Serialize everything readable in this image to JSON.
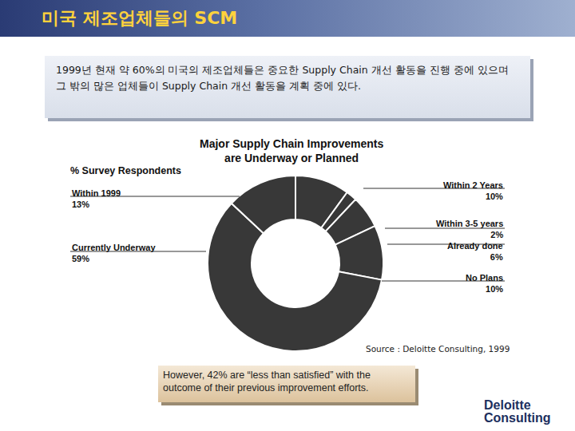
{
  "header": {
    "title": "미국 제조업체들의 SCM"
  },
  "summary": "1999년 현재 약 60%의 미국의 제조업체들은 중요한 Supply Chain 개선 활동을 진행 중에 있으며 그 밖의 많은 업체들이 Supply Chain 개선 활동을 계획 중에 있다.",
  "chart_data": {
    "type": "donut",
    "title": "Major Supply Chain Improvements\nare Underway or Planned",
    "subtitle": "% Survey Respondents",
    "categories": [
      "Within 2 Years",
      "Within 3-5 years",
      "Already done",
      "No Plans",
      "Currently Underway",
      "Within 1999"
    ],
    "values": [
      10,
      2,
      6,
      10,
      59,
      13
    ],
    "value_labels": [
      "10%",
      "2%",
      "6%",
      "10%",
      "59%",
      "13%"
    ],
    "color": "#383838",
    "data_labels": true
  },
  "source": "Source : Deloitte Consulting, 1999",
  "note": "However, 42%  are “less than satisfied” with the outcome of their previous improvement efforts.",
  "logo": "Deloitte\nConsulting"
}
